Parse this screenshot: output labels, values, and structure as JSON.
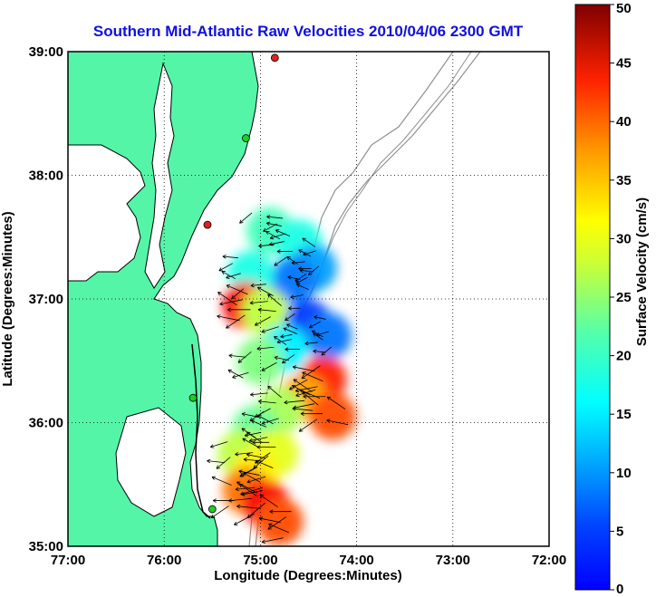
{
  "chart_data": {
    "type": "heatmap",
    "title": "Southern Mid-Atlantic Raw Velocities 2010/04/06 2300 GMT",
    "xlabel": "Longitude (Degrees:Minutes)",
    "ylabel": "Latitude (Degrees:Minutes)",
    "x_ticks": [
      "77:00",
      "76:00",
      "75:00",
      "74:00",
      "73:00",
      "72:00"
    ],
    "y_ticks": [
      "39:00",
      "38:00",
      "37:00",
      "36:00",
      "35:00"
    ],
    "xlim": [
      -77,
      -72
    ],
    "ylim": [
      35,
      39
    ],
    "grid": true,
    "colorbar": {
      "label": "Surface Velocity (cm/s)",
      "range": [
        0,
        50
      ],
      "ticks": [
        "0",
        "5",
        "10",
        "15",
        "20",
        "25",
        "30",
        "35",
        "40",
        "45",
        "50"
      ],
      "colormap": "jet"
    },
    "colors": {
      "land": "#55f5a8",
      "coastline": "#000000",
      "bathymetry": "#909090",
      "title": "#1010e0",
      "station_green": "#22cc22",
      "station_red": "#dd2222"
    },
    "velocity_field": [
      {
        "lon": -74.9,
        "lat": 37.55,
        "speed": 22
      },
      {
        "lon": -74.6,
        "lat": 37.45,
        "speed": 20
      },
      {
        "lon": -74.45,
        "lat": 37.25,
        "speed": 14
      },
      {
        "lon": -74.65,
        "lat": 37.15,
        "speed": 12
      },
      {
        "lon": -75.1,
        "lat": 37.2,
        "speed": 20
      },
      {
        "lon": -75.15,
        "lat": 36.95,
        "speed": 44
      },
      {
        "lon": -74.95,
        "lat": 36.9,
        "speed": 28
      },
      {
        "lon": -74.5,
        "lat": 36.8,
        "speed": 9
      },
      {
        "lon": -74.3,
        "lat": 36.7,
        "speed": 12
      },
      {
        "lon": -74.75,
        "lat": 36.6,
        "speed": 18
      },
      {
        "lon": -75.0,
        "lat": 36.5,
        "speed": 25
      },
      {
        "lon": -74.35,
        "lat": 36.35,
        "speed": 42
      },
      {
        "lon": -74.55,
        "lat": 36.2,
        "speed": 36
      },
      {
        "lon": -74.25,
        "lat": 36.05,
        "speed": 40
      },
      {
        "lon": -74.8,
        "lat": 36.1,
        "speed": 27
      },
      {
        "lon": -75.05,
        "lat": 35.95,
        "speed": 24
      },
      {
        "lon": -75.2,
        "lat": 35.75,
        "speed": 28
      },
      {
        "lon": -74.85,
        "lat": 35.75,
        "speed": 30
      },
      {
        "lon": -75.05,
        "lat": 35.6,
        "speed": 32
      },
      {
        "lon": -75.15,
        "lat": 35.45,
        "speed": 38
      },
      {
        "lon": -74.95,
        "lat": 35.35,
        "speed": 44
      },
      {
        "lon": -74.8,
        "lat": 35.2,
        "speed": 40
      }
    ],
    "stations": [
      {
        "lon": -74.85,
        "lat": 38.95,
        "status": "red"
      },
      {
        "lon": -75.15,
        "lat": 38.3,
        "status": "green"
      },
      {
        "lon": -75.55,
        "lat": 37.6,
        "status": "red"
      },
      {
        "lon": -75.7,
        "lat": 36.2,
        "status": "green"
      },
      {
        "lon": -75.5,
        "lat": 35.3,
        "status": "green"
      }
    ]
  }
}
